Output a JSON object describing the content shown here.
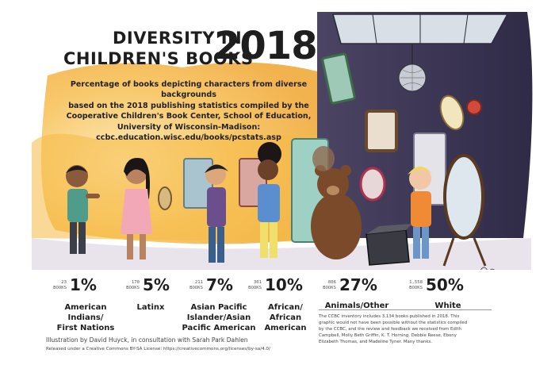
{
  "title": {
    "line1": "DIVERSITY IN",
    "line2": "CHILDREN'S BOOKS",
    "year": "2018"
  },
  "subtitle_lines": [
    "Percentage of books depicting characters from diverse backgrounds",
    "based on the 2018 publishing statistics compiled by the",
    "Cooperative Children's Book Center, School of Education,",
    "University of Wisconsin-Madison:",
    "ccbc.education.wisc.edu/books/pcstats.asp"
  ],
  "chart_data": {
    "type": "table",
    "unit": "%",
    "categories": [
      {
        "label_lines": [
          "American",
          "Indians/",
          "First Nations"
        ],
        "books": "23",
        "percent": 1
      },
      {
        "label_lines": [
          "Latinx"
        ],
        "books": "170",
        "percent": 5
      },
      {
        "label_lines": [
          "Asian Pacific",
          "Islander/Asian",
          "Pacific American"
        ],
        "books": "211",
        "percent": 7
      },
      {
        "label_lines": [
          "African/",
          "African",
          "American"
        ],
        "books": "301",
        "percent": 10
      },
      {
        "label_lines": [
          "Animals/Other"
        ],
        "books": "806",
        "percent": 27
      },
      {
        "label_lines": [
          "White"
        ],
        "books": "1,558",
        "percent": 50
      }
    ],
    "books_label": "BOOKS"
  },
  "credits": {
    "illustration": "Illustration by David Huyck, in consultation with Sarah Park Dahlen",
    "license": "Released under a Creative Commons BY-SA License: https://creativecommons.org/licenses/by-sa/4.0/"
  },
  "note_lines": [
    "The CCBC inventory includes 3,134 books published in 2018. This",
    "graphic would not have been possible without the statistics compiled",
    "by the CCBC, and the review and feedback we received from Edith",
    "Campbell, Molly Beth Griffin, K. T. Horning, Debbie Reese, Ebony",
    "Elizabeth Thomas, and Madeline Tyner. Many thanks."
  ],
  "colors": {
    "background": "#ffffff",
    "wall_left": "#f4b23e",
    "wall_right": "#3c3858",
    "floor": "#e9e4ec",
    "ink": "#1e1e1e"
  }
}
